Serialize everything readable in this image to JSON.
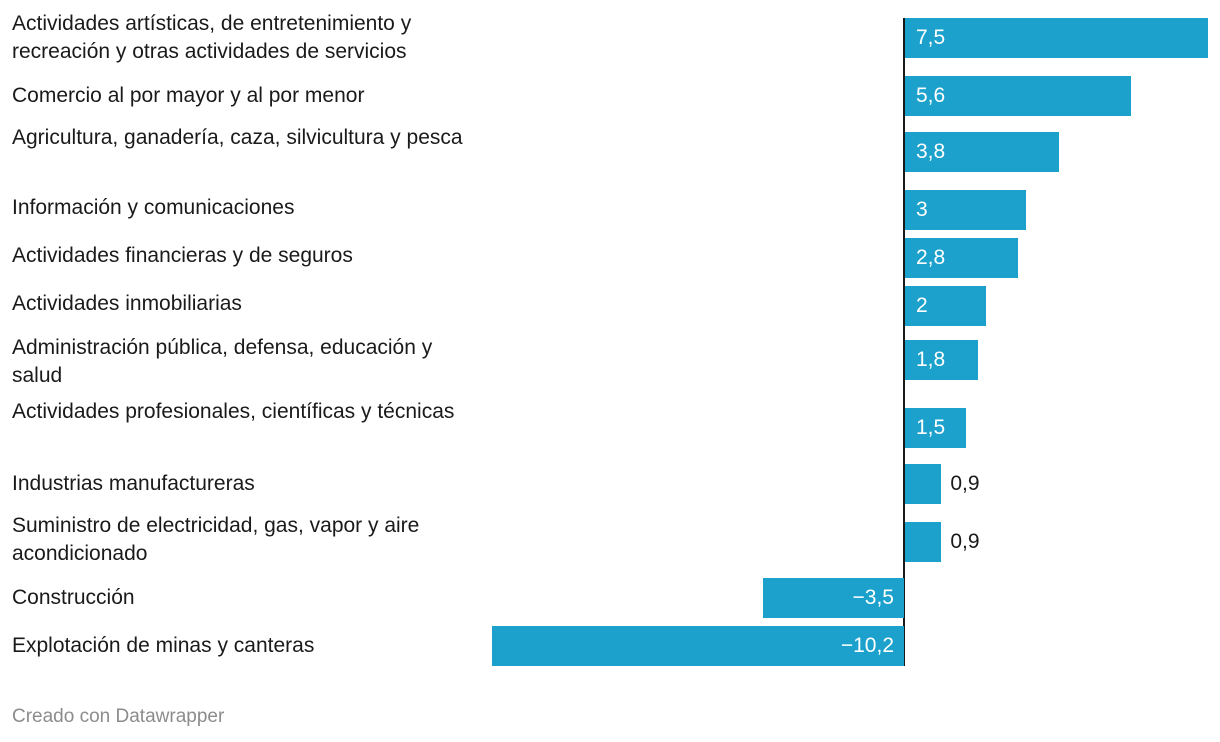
{
  "chart_data": {
    "type": "bar",
    "orientation": "horizontal",
    "categories": [
      "Actividades artísticas, de entretenimiento y recreación y otras actividades de servicios",
      "Comercio al por mayor y al por menor",
      "Agricultura, ganadería, caza, silvicultura y pesca",
      "Información y comunicaciones",
      "Actividades financieras y de seguros",
      "Actividades inmobiliarias",
      "Administración pública, defensa, educación y salud",
      "Actividades profesionales, científicas y técnicas",
      "Industrias manufactureras",
      "Suministro de electricidad, gas, vapor y aire acondicionado",
      "Construcción",
      "Explotación de minas y canteras"
    ],
    "values": [
      7.5,
      5.6,
      3.8,
      3,
      2.8,
      2,
      1.8,
      1.5,
      0.9,
      0.9,
      -3.5,
      -10.2
    ],
    "value_labels": [
      "7,5",
      "5,6",
      "3,8",
      "3",
      "2,8",
      "2",
      "1,8",
      "1,5",
      "0,9",
      "0,9",
      "−3,5",
      "−10,2"
    ],
    "xlim": [
      -10.2,
      7.5
    ],
    "bar_color": "#1ba1cc",
    "title": "",
    "xlabel": "",
    "ylabel": "",
    "grid": false
  },
  "footer": {
    "credit": "Creado con Datawrapper"
  }
}
